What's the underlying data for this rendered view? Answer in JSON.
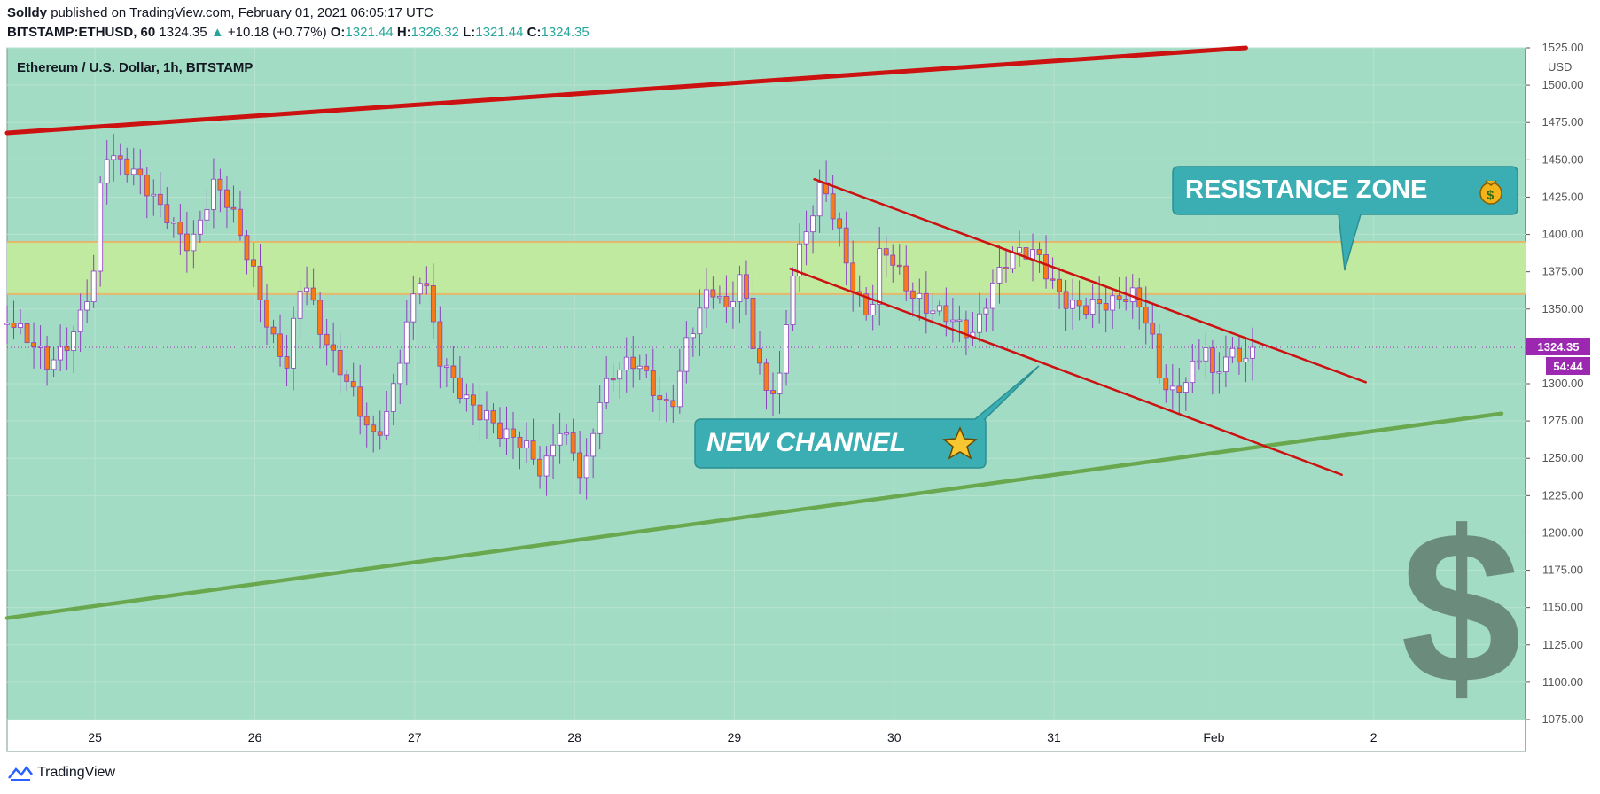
{
  "header": {
    "author": "Solldy",
    "published_text": "published on TradingView.com, February 01, 2021 06:05:17 UTC",
    "symbol": "BITSTAMP:ETHUSD, 60",
    "last": "1324.35",
    "change": "+10.18 (+0.77%)",
    "o_label": "O:",
    "o_value": "1321.44",
    "h_label": "H:",
    "h_value": "1326.32",
    "l_label": "L:",
    "l_value": "1321.44",
    "c_label": "C:",
    "c_value": "1324.35"
  },
  "footer": {
    "brand": "TradingView"
  },
  "colors": {
    "background": "#a3dcc4",
    "bull_body": "#ffffff",
    "bear_body": "#f77c15",
    "wick": "#8e3fbf",
    "resistance_band": "#bfeaa0",
    "resistance_border": "#e8b86a",
    "trend_red": "#cc1111",
    "trend_green": "#6aa84f",
    "callout": "#3aaeb2",
    "price_tag": "#9c27b0",
    "dollar": "#6b8c7c"
  },
  "annotations": {
    "resistance_label": "RESISTANCE ZONE",
    "channel_label": "NEW CHANNEL"
  },
  "chart_data": {
    "type": "candlestick",
    "title": "Ethereum / U.S. Dollar, 1h, BITSTAMP",
    "currency": "USD",
    "ylim": [
      1075,
      1525
    ],
    "y_ticks": [
      "1525.00",
      "1500.00",
      "1475.00",
      "1450.00",
      "1425.00",
      "1400.00",
      "1375.00",
      "1350.00",
      "1325.00",
      "1300.00",
      "1275.00",
      "1250.00",
      "1225.00",
      "1200.00",
      "1175.00",
      "1150.00",
      "1125.00",
      "1100.00",
      "1075.00"
    ],
    "x_ticks": [
      "25",
      "26",
      "27",
      "28",
      "29",
      "30",
      "31",
      "Feb",
      "2"
    ],
    "x_range_days": [
      24.45,
      33.95
    ],
    "current_price": "1324.35",
    "countdown": "54:44",
    "resistance_zone": [
      1360,
      1395
    ],
    "trendlines": [
      {
        "name": "upper-red",
        "points": [
          [
            24.45,
            1468
          ],
          [
            32.2,
            1525
          ]
        ]
      },
      {
        "name": "lower-green",
        "points": [
          [
            24.45,
            1143
          ],
          [
            33.8,
            1280
          ]
        ]
      },
      {
        "name": "channel-top",
        "points": [
          [
            29.5,
            1437
          ],
          [
            32.95,
            1301
          ]
        ]
      },
      {
        "name": "channel-bottom",
        "points": [
          [
            29.35,
            1377
          ],
          [
            32.8,
            1239
          ]
        ]
      }
    ],
    "close_path": [
      [
        24.45,
        1340
      ],
      [
        24.55,
        1325
      ],
      [
        24.7,
        1312
      ],
      [
        24.8,
        1328
      ],
      [
        24.9,
        1350
      ],
      [
        25.0,
        1380
      ],
      [
        25.05,
        1455
      ],
      [
        25.15,
        1440
      ],
      [
        25.3,
        1432
      ],
      [
        25.45,
        1420
      ],
      [
        25.6,
        1395
      ],
      [
        25.75,
        1428
      ],
      [
        25.85,
        1410
      ],
      [
        26.0,
        1375
      ],
      [
        26.1,
        1340
      ],
      [
        26.2,
        1318
      ],
      [
        26.3,
        1372
      ],
      [
        26.4,
        1330
      ],
      [
        26.5,
        1310
      ],
      [
        26.6,
        1300
      ],
      [
        26.75,
        1270
      ],
      [
        26.85,
        1290
      ],
      [
        26.95,
        1335
      ],
      [
        27.05,
        1370
      ],
      [
        27.15,
        1315
      ],
      [
        27.3,
        1300
      ],
      [
        27.45,
        1282
      ],
      [
        27.55,
        1262
      ],
      [
        27.7,
        1250
      ],
      [
        27.8,
        1238
      ],
      [
        27.9,
        1278
      ],
      [
        28.0,
        1262
      ],
      [
        28.05,
        1238
      ],
      [
        28.15,
        1285
      ],
      [
        28.25,
        1300
      ],
      [
        28.4,
        1312
      ],
      [
        28.5,
        1300
      ],
      [
        28.6,
        1290
      ],
      [
        28.7,
        1330
      ],
      [
        28.85,
        1358
      ],
      [
        28.95,
        1342
      ],
      [
        29.05,
        1375
      ],
      [
        29.1,
        1340
      ],
      [
        29.2,
        1302
      ],
      [
        29.3,
        1310
      ],
      [
        29.35,
        1372
      ],
      [
        29.45,
        1395
      ],
      [
        29.55,
        1428
      ],
      [
        29.65,
        1402
      ],
      [
        29.75,
        1368
      ],
      [
        29.85,
        1352
      ],
      [
        29.92,
        1398
      ],
      [
        30.0,
        1378
      ],
      [
        30.1,
        1352
      ],
      [
        30.2,
        1345
      ],
      [
        30.35,
        1350
      ],
      [
        30.5,
        1340
      ],
      [
        30.6,
        1362
      ],
      [
        30.7,
        1375
      ],
      [
        30.8,
        1382
      ],
      [
        30.9,
        1386
      ],
      [
        31.0,
        1372
      ],
      [
        31.1,
        1360
      ],
      [
        31.2,
        1352
      ],
      [
        31.35,
        1345
      ],
      [
        31.5,
        1358
      ],
      [
        31.6,
        1345
      ],
      [
        31.65,
        1315
      ],
      [
        31.75,
        1298
      ],
      [
        31.85,
        1305
      ],
      [
        31.95,
        1318
      ],
      [
        32.0,
        1290
      ],
      [
        32.05,
        1312
      ],
      [
        32.15,
        1320
      ],
      [
        32.25,
        1324
      ]
    ]
  }
}
